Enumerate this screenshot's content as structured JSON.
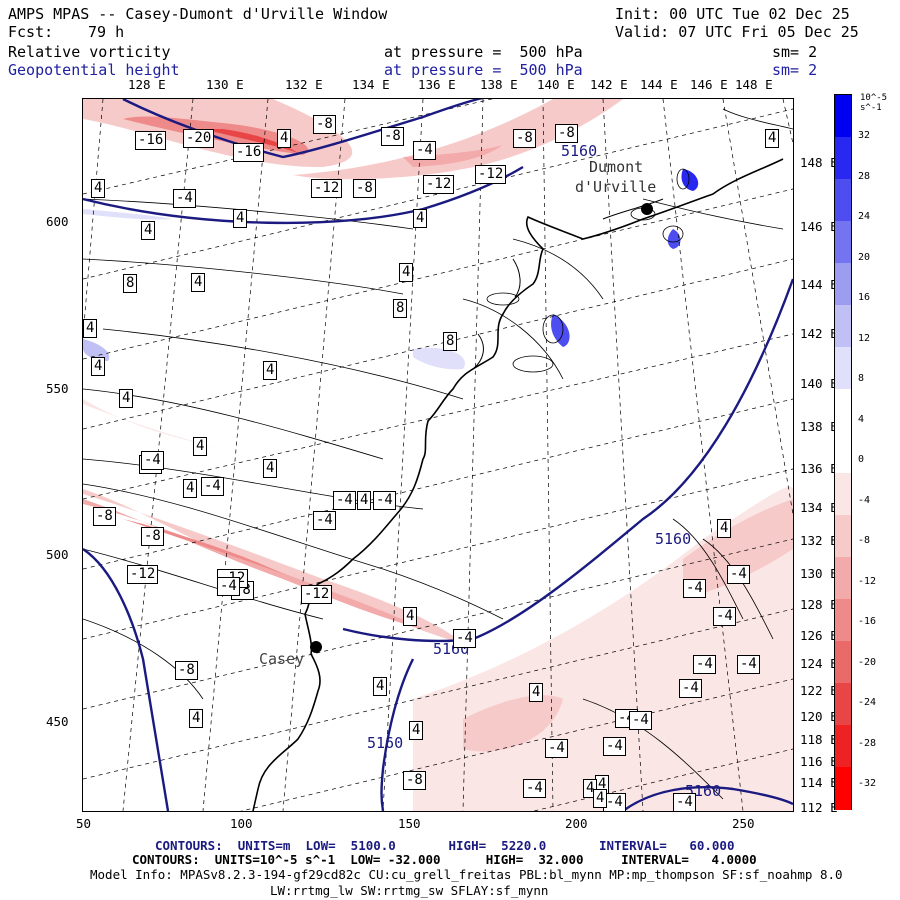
{
  "header": {
    "title": "AMPS MPAS -- Casey-Dumont d'Urville Window",
    "init": "Init: 00 UTC Tue 02 Dec 25",
    "fcst_label": "Fcst:",
    "fcst_value": "79 h",
    "valid": "Valid: 07 UTC Fri 05 Dec 25"
  },
  "fields": [
    {
      "name": "Relative vorticity",
      "level": "at pressure =  500 hPa",
      "smooth": "sm= 2",
      "color": "#000000"
    },
    {
      "name": "Geopotential height",
      "level": "at pressure =  500 hPa",
      "smooth": "sm= 2",
      "color": "#2020a0"
    }
  ],
  "axes": {
    "top_lon_labels": [
      "128 E",
      "130 E",
      "132 E",
      "134 E",
      "136 E",
      "138 E",
      "140 E",
      "142 E",
      "144 E",
      "146 E",
      "148 E"
    ],
    "right_lat_labels": [
      "148 E",
      "146 E",
      "144 E",
      "142 E",
      "140 E",
      "138 E",
      "136 E",
      "134 E",
      "132 E",
      "130 E",
      "128 E",
      "126 E",
      "124 E",
      "122 E",
      "120 E",
      "118 E",
      "116 E",
      "114 E",
      "112 E"
    ],
    "x_ticks": [
      "50",
      "100",
      "150",
      "200",
      "250"
    ],
    "y_ticks": [
      "600",
      "550",
      "500",
      "450"
    ]
  },
  "stations": [
    {
      "name": "Dumont d'Urville",
      "label_line1": "Dumont",
      "label_line2": "d'Urville"
    },
    {
      "name": "Casey",
      "label": "Casey"
    }
  ],
  "height_contour_labels": [
    "5160",
    "5160",
    "5160",
    "5160",
    "5160"
  ],
  "vorticity_labels": [
    "-16",
    "-20",
    "-16",
    "4",
    "-8",
    "-8",
    "-4",
    "-8",
    "-8",
    "4",
    "-12",
    "-12",
    "-12",
    "-8",
    "4",
    "-4",
    "4",
    "4",
    "4",
    "8",
    "4",
    "8",
    "4",
    "4",
    "8",
    "4",
    "4",
    "4",
    "4",
    "4",
    "4",
    "-4",
    "-4",
    "-4",
    "-4",
    "4",
    "-4",
    "-8",
    "-8",
    "-8",
    "-12",
    "-12",
    "-12",
    "-4",
    "-4",
    "-8",
    "4",
    "4",
    "-4",
    "4",
    "-4",
    "-4",
    "-4",
    "-4",
    "4",
    "-4",
    "-4",
    "-4",
    "-4",
    "4",
    "-4",
    "4",
    "-4",
    "-4",
    "4",
    "-4",
    "-4",
    "4",
    "-8",
    "4"
  ],
  "colorbar": {
    "unit": "10^-5 s^-1",
    "labels": [
      "32",
      "28",
      "24",
      "20",
      "16",
      "12",
      "8",
      "4",
      "0",
      "-4",
      "-8",
      "-12",
      "-16",
      "-20",
      "-24",
      "-28",
      "-32"
    ],
    "colors_positive": [
      "#0000f0",
      "#2828f0",
      "#4e4ef0",
      "#7474f0",
      "#9c9cf0",
      "#c0c0f4",
      "#e0e0fa"
    ],
    "colors_negative": [
      "#fbe6e6",
      "#f7caca",
      "#f2aaaa",
      "#ee8a8a",
      "#ea6a6a",
      "#e84646",
      "#ee2222",
      "#ff0000"
    ]
  },
  "footer": {
    "line1": "CONTOURS:  UNITS=m  LOW=  5100.0       HIGH=  5220.0       INTERVAL=   60.000",
    "line2": "CONTOURS:  UNITS=10^-5 s^-1  LOW= -32.000      HIGH=  32.000     INTERVAL=   4.0000",
    "line3": "Model Info: MPASv8.2.3-194-gf29cd82c CU:cu_grell_freitas PBL:bl_mynn MP:mp_thompson SF:sf_noahmp 8.0",
    "line4": "LW:rrtmg_lw SW:rrtmg_sw SFLAY:sf_mynn"
  }
}
